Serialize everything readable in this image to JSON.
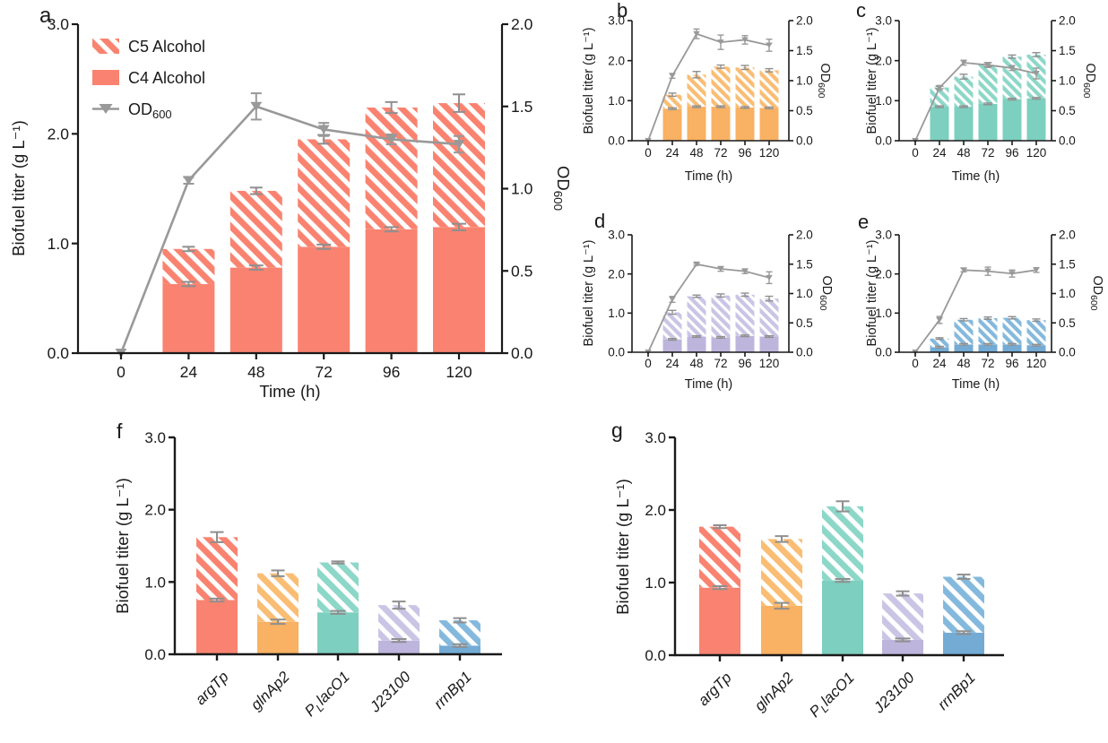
{
  "figure": {
    "background": "#ffffff",
    "axis_color": "#1a1a1a",
    "error_bar_color": "#8f8f8f",
    "od_line_color": "#999999",
    "palette": {
      "salmon": {
        "solid": "#F98370",
        "hatch": "#F98370"
      },
      "orange": {
        "solid": "#F9B163",
        "hatch": "#FABD74"
      },
      "teal": {
        "solid": "#7DCFBF",
        "hatch": "#8CD7C8"
      },
      "lavender": {
        "solid": "#BDB5DC",
        "hatch": "#CAC4E5"
      },
      "blue": {
        "solid": "#73ABD5",
        "hatch": "#84B9DD"
      }
    }
  },
  "chart_data": [
    {
      "id": "a",
      "panel_label": "a",
      "type": "stacked-bar+line",
      "xlabel": "Time (h)",
      "ylabel": "Biofuel titer (g L⁻¹)",
      "y2label": {
        "text": "OD",
        "sub": "600"
      },
      "ylim": [
        0,
        3
      ],
      "yticks": [
        "0.0",
        "1.0",
        "2.0",
        "3.0"
      ],
      "y2lim": [
        0,
        2
      ],
      "y2ticks": [
        "0.0",
        "0.5",
        "1.0",
        "1.5",
        "2.0"
      ],
      "categories": [
        "0",
        "24",
        "48",
        "72",
        "96",
        "120"
      ],
      "color": "salmon",
      "legend": {
        "items": [
          {
            "swatch": "hatch",
            "label": "C5 Alcohol"
          },
          {
            "swatch": "solid",
            "label": "C4 Alcohol"
          },
          {
            "swatch": "line",
            "label": "OD",
            "label_sub": "600"
          }
        ]
      },
      "c4_alcohol": {
        "values": [
          0,
          0.63,
          0.78,
          0.97,
          1.13,
          1.15
        ],
        "errors": [
          0,
          0.02,
          0.02,
          0.02,
          0.02,
          0.03
        ]
      },
      "total_titer": {
        "values": [
          0,
          0.95,
          1.48,
          1.95,
          2.24,
          2.28
        ],
        "errors": [
          0,
          0.02,
          0.03,
          0.04,
          0.05,
          0.08
        ]
      },
      "od600": {
        "values": [
          0,
          1.05,
          1.5,
          1.36,
          1.3,
          1.27
        ],
        "errors": [
          0,
          0.02,
          0.08,
          0.04,
          0.03,
          0.05
        ]
      }
    },
    {
      "id": "b",
      "panel_label": "b",
      "type": "stacked-bar+line",
      "xlabel": "Time (h)",
      "ylabel": "Biofuel titer (g L⁻¹)",
      "y2label": {
        "text": "OD",
        "sub": "600"
      },
      "ylim": [
        0,
        3
      ],
      "yticks": [
        "0.0",
        "1.0",
        "2.0",
        "3.0"
      ],
      "y2lim": [
        0,
        2
      ],
      "y2ticks": [
        "0.0",
        "0.5",
        "1.0",
        "1.5",
        "2.0"
      ],
      "categories": [
        "0",
        "24",
        "48",
        "72",
        "96",
        "120"
      ],
      "color": "orange",
      "c4_alcohol": {
        "values": [
          0,
          0.8,
          0.85,
          0.85,
          0.83,
          0.82
        ],
        "errors": [
          0,
          0.02,
          0.02,
          0.02,
          0.02,
          0.02
        ]
      },
      "total_titer": {
        "values": [
          0,
          1.15,
          1.65,
          1.85,
          1.83,
          1.76
        ],
        "errors": [
          0,
          0.04,
          0.08,
          0.04,
          0.05,
          0.04
        ]
      },
      "od600": {
        "values": [
          0,
          1.08,
          1.78,
          1.64,
          1.68,
          1.59
        ],
        "errors": [
          0,
          0.04,
          0.08,
          0.12,
          0.07,
          0.1
        ]
      }
    },
    {
      "id": "c",
      "panel_label": "c",
      "type": "stacked-bar+line",
      "xlabel": "Time (h)",
      "ylabel": "Biofuel titer (g L⁻¹)",
      "y2label": {
        "text": "OD",
        "sub": "600"
      },
      "ylim": [
        0,
        3
      ],
      "yticks": [
        "0.0",
        "1.0",
        "2.0",
        "3.0"
      ],
      "y2lim": [
        0,
        2
      ],
      "y2ticks": [
        "0.0",
        "0.5",
        "1.0",
        "1.5",
        "2.0"
      ],
      "categories": [
        "0",
        "24",
        "48",
        "72",
        "96",
        "120"
      ],
      "color": "teal",
      "c4_alcohol": {
        "values": [
          0,
          0.85,
          0.85,
          0.92,
          1.04,
          1.06
        ],
        "errors": [
          0,
          0.02,
          0.02,
          0.02,
          0.02,
          0.02
        ]
      },
      "total_titer": {
        "values": [
          0,
          1.33,
          1.6,
          1.9,
          2.1,
          2.15
        ],
        "errors": [
          0,
          0.03,
          0.06,
          0.05,
          0.04,
          0.05
        ]
      },
      "od600": {
        "values": [
          0,
          0.88,
          1.3,
          1.26,
          1.21,
          1.12
        ],
        "errors": [
          0,
          0.04,
          0.04,
          0.04,
          0.04,
          0.09
        ]
      }
    },
    {
      "id": "d",
      "panel_label": "d",
      "type": "stacked-bar+line",
      "xlabel": "Time (h)",
      "ylabel": "Biofuel titer (g L⁻¹)",
      "y2label": {
        "text": "OD",
        "sub": "600"
      },
      "ylim": [
        0,
        3
      ],
      "yticks": [
        "0.0",
        "1.0",
        "2.0",
        "3.0"
      ],
      "y2lim": [
        0,
        2
      ],
      "y2ticks": [
        "0.0",
        "0.5",
        "1.0",
        "1.5",
        "2.0"
      ],
      "categories": [
        "0",
        "24",
        "48",
        "72",
        "96",
        "120"
      ],
      "color": "lavender",
      "c4_alcohol": {
        "values": [
          0,
          0.33,
          0.4,
          0.38,
          0.42,
          0.4
        ],
        "errors": [
          0,
          0.02,
          0.02,
          0.02,
          0.02,
          0.02
        ]
      },
      "total_titer": {
        "values": [
          0,
          1.02,
          1.43,
          1.45,
          1.47,
          1.37
        ],
        "errors": [
          0,
          0.05,
          0.03,
          0.04,
          0.04,
          0.06
        ]
      },
      "od600": {
        "values": [
          0,
          0.9,
          1.5,
          1.42,
          1.38,
          1.27
        ],
        "errors": [
          0,
          0.05,
          0.02,
          0.04,
          0.04,
          0.1
        ]
      }
    },
    {
      "id": "e",
      "panel_label": "e",
      "type": "stacked-bar+line",
      "xlabel": "Time (h)",
      "ylabel": "Biofuel titer (g L⁻¹)",
      "y2label": {
        "text": "OD",
        "sub": "600"
      },
      "ylim": [
        0,
        3
      ],
      "yticks": [
        "0.0",
        "1.0",
        "2.0",
        "3.0"
      ],
      "y2lim": [
        0,
        2
      ],
      "y2ticks": [
        "0.0",
        "0.5",
        "1.0",
        "1.5",
        "2.0"
      ],
      "categories": [
        "0",
        "24",
        "48",
        "72",
        "96",
        "120"
      ],
      "color": "blue",
      "c4_alcohol": {
        "values": [
          0,
          0.13,
          0.2,
          0.2,
          0.2,
          0.18
        ],
        "errors": [
          0,
          0.02,
          0.02,
          0.02,
          0.02,
          0.02
        ]
      },
      "total_titer": {
        "values": [
          0,
          0.35,
          0.83,
          0.87,
          0.88,
          0.82
        ],
        "errors": [
          0,
          0.02,
          0.03,
          0.03,
          0.03,
          0.03
        ]
      },
      "od600": {
        "values": [
          0,
          0.55,
          1.4,
          1.38,
          1.34,
          1.4
        ],
        "errors": [
          0,
          0.06,
          0.03,
          0.07,
          0.06,
          0.04
        ]
      }
    },
    {
      "id": "f",
      "panel_label": "f",
      "type": "stacked-bar",
      "ylabel": "Biofuel titer (g L⁻¹)",
      "ylim": [
        0,
        3
      ],
      "yticks": [
        "0.0",
        "1.0",
        "2.0",
        "3.0"
      ],
      "categories": [
        {
          "text": "argTp",
          "italic": true
        },
        {
          "text": "glnAp2",
          "italic": true
        },
        {
          "pre": "P",
          "sub": "L",
          "post": "lacO1",
          "italic": true
        },
        {
          "text": "J23100",
          "italic": true
        },
        {
          "text": "rrnBp1",
          "italic": true
        }
      ],
      "colors": [
        "salmon",
        "orange",
        "teal",
        "lavender",
        "blue"
      ],
      "c4_alcohol": {
        "values": [
          0.75,
          0.45,
          0.58,
          0.19,
          0.12
        ],
        "errors": [
          0.02,
          0.03,
          0.02,
          0.02,
          0.02
        ]
      },
      "total_titer": {
        "values": [
          1.62,
          1.12,
          1.27,
          0.68,
          0.47
        ],
        "errors": [
          0.07,
          0.04,
          0.015,
          0.05,
          0.03
        ]
      }
    },
    {
      "id": "g",
      "panel_label": "g",
      "type": "stacked-bar",
      "ylabel": "Biofuel titer (g L⁻¹)",
      "ylim": [
        0,
        3
      ],
      "yticks": [
        "0.0",
        "1.0",
        "2.0",
        "3.0"
      ],
      "categories": [
        {
          "text": "argTp",
          "italic": true
        },
        {
          "text": "glnAp2",
          "italic": true
        },
        {
          "pre": "P",
          "sub": "L",
          "post": "lacO1",
          "italic": true
        },
        {
          "text": "J23100",
          "italic": true
        },
        {
          "text": "rrnBp1",
          "italic": true
        }
      ],
      "colors": [
        "salmon",
        "orange",
        "teal",
        "lavender",
        "blue"
      ],
      "c4_alcohol": {
        "values": [
          0.93,
          0.68,
          1.03,
          0.21,
          0.31
        ],
        "errors": [
          0.02,
          0.04,
          0.02,
          0.02,
          0.02
        ]
      },
      "total_titer": {
        "values": [
          1.77,
          1.6,
          2.05,
          0.85,
          1.08
        ],
        "errors": [
          0.02,
          0.04,
          0.07,
          0.03,
          0.03
        ]
      }
    }
  ]
}
